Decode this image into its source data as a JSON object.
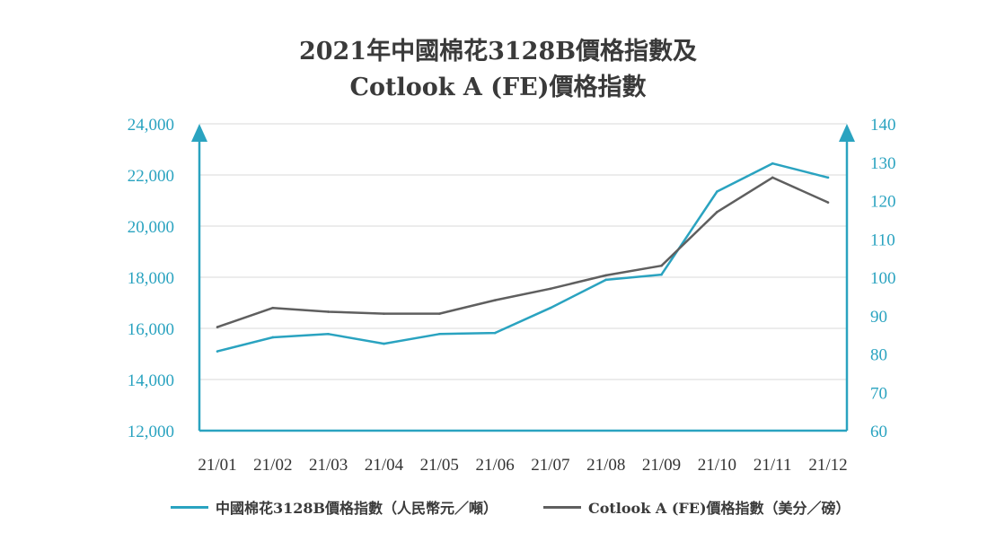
{
  "chart_data": {
    "type": "line",
    "title": "2021年中國棉花3128B價格指數及",
    "subtitle": "Cotlook A (FE)價格指數",
    "categories": [
      "21/01",
      "21/02",
      "21/03",
      "21/04",
      "21/05",
      "21/06",
      "21/07",
      "21/08",
      "21/09",
      "21/10",
      "21/11",
      "21/12"
    ],
    "left_axis": {
      "ylim": [
        12000,
        24000
      ],
      "ticks": [
        "12,000",
        "14,000",
        "16,000",
        "18,000",
        "20,000",
        "22,000",
        "24,000"
      ]
    },
    "right_axis": {
      "ylim": [
        60,
        140
      ],
      "ticks": [
        "60",
        "70",
        "80",
        "90",
        "100",
        "110",
        "120",
        "130",
        "140"
      ]
    },
    "series": [
      {
        "name": "中國棉花3128B價格指數（人民幣元／噸）",
        "axis": "left",
        "color": "#2aa3c0",
        "values": [
          15100,
          15650,
          15780,
          15400,
          15780,
          15820,
          16800,
          17900,
          18100,
          21350,
          22450,
          21900
        ]
      },
      {
        "name": "Cotlook A (FE)價格指數（美分／磅）",
        "axis": "right",
        "color": "#5f5f5f",
        "values": [
          87,
          92,
          91,
          90.5,
          90.5,
          94,
          97,
          100.5,
          103,
          117,
          126,
          119.5
        ]
      }
    ],
    "grid": true,
    "legend_position": "bottom"
  },
  "colors": {
    "axis": "#2aa3c0",
    "grid": "#d9d9d9",
    "title": "#3a3a3a"
  }
}
